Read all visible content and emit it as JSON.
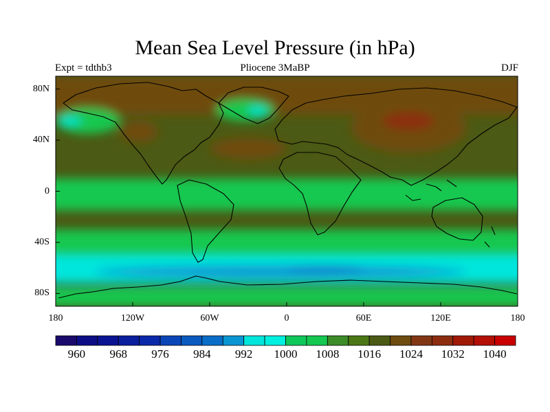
{
  "title": "Mean Sea Level Pressure (in hPa)",
  "subtitle_left": "Expt = tdthb3",
  "subtitle_center": "Pliocene   3MaBP",
  "subtitle_right": "DJF",
  "axes": {
    "lat_ticks": [
      {
        "label": "80N",
        "value": 80
      },
      {
        "label": "40N",
        "value": 40
      },
      {
        "label": "0",
        "value": 0
      },
      {
        "label": "40S",
        "value": -40
      },
      {
        "label": "80S",
        "value": -80
      }
    ],
    "lon_ticks": [
      {
        "label": "180",
        "value": -180
      },
      {
        "label": "120W",
        "value": -120
      },
      {
        "label": "60W",
        "value": -60
      },
      {
        "label": "0",
        "value": 0
      },
      {
        "label": "60E",
        "value": 60
      },
      {
        "label": "120E",
        "value": 120
      },
      {
        "label": "180",
        "value": 180
      }
    ],
    "lat_range": [
      -90,
      90
    ],
    "lon_range": [
      -180,
      180
    ]
  },
  "colorbar": {
    "colors": [
      "#1a0a6b",
      "#0d0d85",
      "#0a1493",
      "#0a1e9e",
      "#0a28aa",
      "#0a46b8",
      "#0a5ac0",
      "#0a6ec8",
      "#0a96d2",
      "#00e6dc",
      "#00f0e0",
      "#0fc85a",
      "#14c850",
      "#3c8c28",
      "#4b7814",
      "#4b5a14",
      "#6e4b0f",
      "#823714",
      "#8c2d0f",
      "#a01905",
      "#b40f05",
      "#c80000"
    ],
    "labels": [
      "960",
      "968",
      "976",
      "984",
      "992",
      "1000",
      "1008",
      "1016",
      "1024",
      "1032",
      "1040"
    ],
    "label_positions": [
      1,
      3,
      5,
      7,
      9,
      11,
      13,
      15,
      17,
      19,
      21
    ]
  },
  "fields": {
    "background": "#4b5a14",
    "zones": [
      {
        "level": 1024,
        "color": "#6e4b0f",
        "region": "arctic",
        "lon": [
          -180,
          180
        ],
        "lat": [
          60,
          90
        ]
      },
      {
        "level": 1024,
        "color": "#6e4b0f",
        "region": "north-atlantic-high",
        "lon": [
          -60,
          0
        ],
        "lat": [
          25,
          42
        ]
      },
      {
        "level": 1024,
        "color": "#6e4b0f",
        "region": "siberian-high",
        "lon": [
          50,
          140
        ],
        "lat": [
          30,
          70
        ]
      },
      {
        "level": 1032,
        "color": "#8c2d0f",
        "region": "siberian-core",
        "lon": [
          75,
          115
        ],
        "lat": [
          48,
          62
        ]
      },
      {
        "level": 1024,
        "color": "#6e4b0f",
        "region": "north-america-high",
        "lon": [
          -130,
          -100
        ],
        "lat": [
          38,
          55
        ]
      },
      {
        "level": 1008,
        "color": "#14c850",
        "region": "equatorial-band",
        "lon": [
          -180,
          180
        ],
        "lat": [
          -15,
          10
        ]
      },
      {
        "level": 1008,
        "color": "#14c850",
        "region": "southern-band",
        "lon": [
          -180,
          180
        ],
        "lat": [
          -55,
          -30
        ]
      },
      {
        "level": 1000,
        "color": "#00e6dc",
        "region": "southern-low",
        "lon": [
          -180,
          180
        ],
        "lat": [
          -72,
          -50
        ]
      },
      {
        "level": 992,
        "color": "#0a96d2",
        "region": "southern-core",
        "lon": [
          -150,
          140
        ],
        "lat": [
          -68,
          -58
        ]
      },
      {
        "level": 984,
        "color": "#0a6ec8",
        "region": "southern-deep",
        "lon": [
          0,
          60
        ],
        "lat": [
          -63,
          -58
        ]
      },
      {
        "level": 1008,
        "color": "#14c850",
        "region": "aleutian-low",
        "lon": [
          -180,
          -130
        ],
        "lat": [
          45,
          65
        ]
      },
      {
        "level": 1000,
        "color": "#00e6dc",
        "region": "aleutian-core",
        "lon": [
          -178,
          -160
        ],
        "lat": [
          52,
          58
        ]
      },
      {
        "level": 1008,
        "color": "#14c850",
        "region": "icelandic-low",
        "lon": [
          -55,
          -10
        ],
        "lat": [
          55,
          72
        ]
      },
      {
        "level": 1000,
        "color": "#00e6dc",
        "region": "icelandic-core",
        "lon": [
          -30,
          -15
        ],
        "lat": [
          60,
          66
        ]
      },
      {
        "level": 1008,
        "color": "#14c850",
        "region": "antarctica",
        "lon": [
          -180,
          180
        ],
        "lat": [
          -90,
          -75
        ]
      }
    ]
  }
}
